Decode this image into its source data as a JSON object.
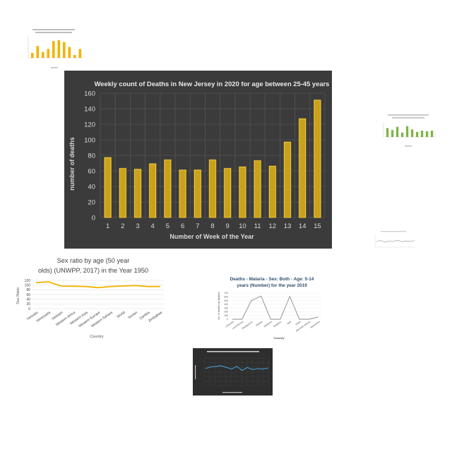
{
  "charts": {
    "main": {
      "colors": {
        "background": "#3b3b3b",
        "bar": "#c9a11a",
        "bar_glow": "#ffd23f",
        "grid": "#555555",
        "text": "#d9d9d9"
      }
    },
    "sexratio": {
      "colors": {
        "line": "#f0b400",
        "grid": "#d9d9d9",
        "text": "#444444"
      }
    },
    "malaria": {
      "colors": {
        "line": "#888888",
        "grid": "#e6e6e6",
        "title": "#2f4f6f"
      }
    },
    "oregon": {
      "colors": {
        "background": "#2e2e2e",
        "line": "#4aa3df"
      }
    },
    "thumb_a": {
      "colors": {
        "bar": "#f0b400"
      }
    },
    "thumb_b": {
      "colors": {
        "bar": "#7cb342"
      }
    },
    "thumb_c": {
      "colors": {
        "line": "#b0b0b0"
      }
    }
  },
  "chart_data": [
    {
      "type": "bar",
      "title": "Weekly count of Deaths in New Jersey in 2020 for age between 25-45 years",
      "xlabel": "Number of Week of the Year",
      "ylabel": "number of deaths",
      "categories": [
        "1",
        "2",
        "3",
        "4",
        "5",
        "6",
        "7",
        "8",
        "9",
        "10",
        "11",
        "12",
        "13",
        "14",
        "15"
      ],
      "values": [
        77,
        63,
        62,
        69,
        74,
        61,
        61,
        74,
        63,
        65,
        73,
        66,
        97,
        127,
        151
      ],
      "ylim": [
        0,
        160
      ],
      "yticks": [
        "0",
        "20",
        "40",
        "60",
        "80",
        "100",
        "120",
        "140",
        "160"
      ],
      "grid": true
    },
    {
      "type": "line",
      "title": "Sex ratio by age (50 year olds) (UNWPP, 2017) in the Year 1950",
      "xlabel": "Country",
      "ylabel": "Sex Ratio",
      "categories": [
        "Vanuatu",
        "Venezuela",
        "Vietnam",
        "Western Africa",
        "Western Asia",
        "Western Europe",
        "Western Sahara",
        "World",
        "Yemen",
        "Zambia",
        "Zimbabwe"
      ],
      "values": [
        110,
        114,
        96,
        95,
        94,
        89,
        94,
        96,
        98,
        94,
        94
      ],
      "ylim": [
        0,
        120
      ],
      "yticks": [
        "0",
        "20",
        "40",
        "60",
        "80",
        "100",
        "120"
      ],
      "grid": true
    },
    {
      "type": "line",
      "title": "Deaths - Malaria - Sex: Both - Age: 5-14 years (Number) for the year 2019",
      "xlabel": "Country",
      "ylabel": "No. of deaths by Malaria",
      "categories": [
        "Lithuania",
        "Luxembourg",
        "Madagascar",
        "Malawi",
        "Malaysia",
        "Maldives",
        "Mali",
        "Malta",
        "Marshall Islands",
        "Mauritania"
      ],
      "values": [
        0,
        0,
        500,
        620,
        0,
        0,
        610,
        0,
        0,
        60
      ],
      "ylim": [
        0,
        700
      ],
      "yticks": [
        "0",
        "100",
        "200",
        "300",
        "400",
        "500",
        "600",
        "700"
      ],
      "grid": true
    }
  ]
}
